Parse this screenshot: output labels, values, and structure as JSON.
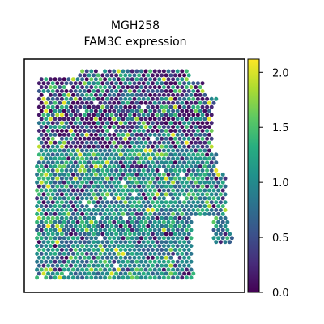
{
  "chart_data": {
    "type": "scatter",
    "subtype": "spatial-hex-spots",
    "title": "MGH258",
    "subtitle": "FAM3C expression",
    "xlabel": "",
    "ylabel": "",
    "x_ticks_visible": false,
    "y_ticks_visible": false,
    "grid": false,
    "colorbar": {
      "colormap": "viridis",
      "range": [
        0.0,
        2.12
      ],
      "ticks": [
        0.0,
        0.5,
        1.0,
        1.5,
        2.0
      ],
      "tick_labels": [
        "0.0",
        "0.5",
        "1.0",
        "1.5",
        "2.0"
      ]
    },
    "colors": {
      "low": "#440154",
      "mid": "#21918c",
      "high": "#fde725",
      "frame": "#000000"
    },
    "value_summary": {
      "min": 0.0,
      "max": 2.12,
      "dominant_range": [
        0.6,
        1.4
      ]
    },
    "points_note": "Dense hexagonal grid of tissue spots; per-spot values not individually labeled."
  }
}
